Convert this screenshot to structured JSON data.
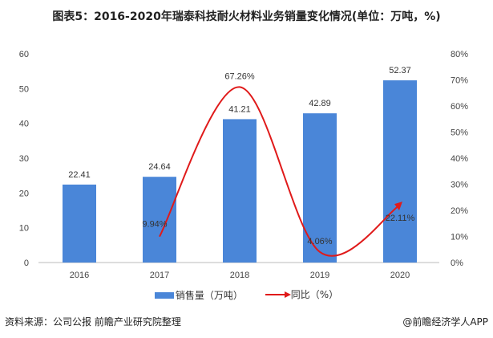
{
  "chart_data": {
    "type": "bar+line",
    "title": "图表5：2016-2020年瑞泰科技耐火材料业务销量变化情况(单位：万吨，%)",
    "categories": [
      "2016",
      "2017",
      "2018",
      "2019",
      "2020"
    ],
    "series": [
      {
        "name": "销售量（万吨）",
        "type": "bar",
        "axis": "left",
        "values": [
          22.41,
          24.64,
          41.21,
          42.89,
          52.37
        ],
        "labels": [
          "22.41",
          "24.64",
          "41.21",
          "42.89",
          "52.37"
        ],
        "color": "#4a86d8"
      },
      {
        "name": "同比（%）",
        "type": "line",
        "axis": "right",
        "values": [
          null,
          9.94,
          67.26,
          4.06,
          22.11
        ],
        "labels": [
          "",
          "9.94%",
          "67.26%",
          "4.06%",
          "22.11%"
        ],
        "color": "#e01a1a"
      }
    ],
    "y_left": {
      "ylim": [
        0,
        60
      ],
      "ticks": [
        "0",
        "10",
        "20",
        "30",
        "40",
        "50",
        "60"
      ]
    },
    "y_right": {
      "ylim": [
        0,
        80
      ],
      "ticks": [
        "0%",
        "10%",
        "20%",
        "30%",
        "40%",
        "50%",
        "60%",
        "70%",
        "80%"
      ]
    },
    "grid": false,
    "legend": "bottom"
  },
  "footer": {
    "source": "资料来源：公司公报 前瞻产业研究院整理",
    "brand": "@前瞻经济学人APP"
  }
}
